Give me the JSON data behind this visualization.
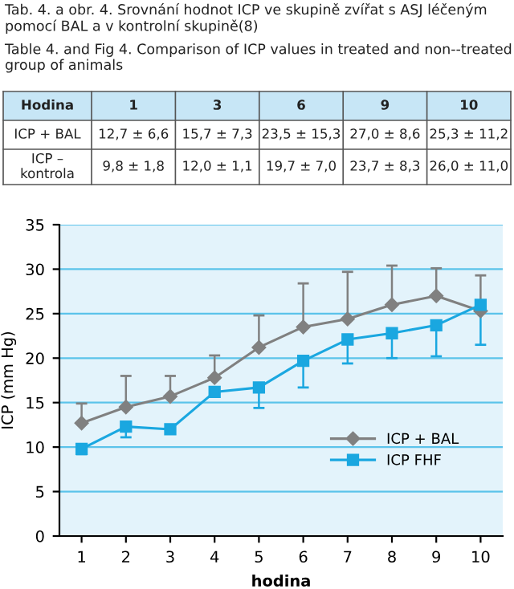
{
  "chart_data": {
    "type": "line",
    "title": "Tab. 4. a obr. 4. Srovnání hodnot ICP ve skupině zvířat s ASJ léčeným pomocí BAL a v kontrolní skupině(8)",
    "subtitle": "Table 4. and Fig 4. Comparison of ICP values in treated and non--treated group of animals",
    "xlabel": "hodina",
    "ylabel": "ICP (mm Hg)",
    "annotations": [
      "Hodina",
      "1",
      "3",
      "6",
      "9",
      "10",
      "ICP + BAL",
      "12,7 ± 6,6",
      "15,7 ± 7,3",
      "23,5 ± 15,3",
      "27,0 ± 8,6",
      "25,3 ± 11,2",
      "ICP –\nkontrola",
      "9,8 ± 1,8",
      "12,0 ± 1,1",
      "19,7 ± 7,0",
      "23,7 ± 8,3",
      "26,0 ± 11,0"
    ],
    "x": [
      1,
      2,
      3,
      4,
      5,
      6,
      7,
      8,
      9,
      10
    ],
    "series": [
      {
        "name": "ICP + BAL",
        "color": "#808080",
        "marker": "diamond",
        "values": [
          12.7,
          14.5,
          15.7,
          17.8,
          21.2,
          23.5,
          24.4,
          26.0,
          27.0,
          25.3
        ],
        "errors": [
          [
            12.7,
            14.9
          ],
          [
            14.5,
            18.0
          ],
          [
            15.7,
            18.0
          ],
          [
            17.8,
            20.3
          ],
          [
            21.2,
            24.8
          ],
          [
            23.5,
            28.4
          ],
          [
            24.4,
            29.7
          ],
          [
            26.0,
            30.4
          ],
          [
            27.0,
            30.1
          ],
          [
            25.3,
            29.3
          ]
        ]
      },
      {
        "name": "ICP FHF",
        "color": "#1aa7e0",
        "marker": "square",
        "values": [
          9.8,
          12.3,
          12.0,
          16.2,
          16.7,
          19.7,
          22.1,
          22.8,
          23.7,
          26.0
        ],
        "errors": [
          [
            9.2,
            9.8
          ],
          [
            11.1,
            12.3
          ],
          [
            11.5,
            12.0
          ],
          null,
          [
            14.4,
            16.7
          ],
          [
            16.7,
            19.7
          ],
          [
            19.4,
            22.1
          ],
          [
            20.0,
            22.8
          ],
          [
            20.2,
            23.7
          ],
          [
            21.5,
            26.0
          ]
        ]
      }
    ],
    "xlim": [
      0.5,
      10.5
    ],
    "xticks": [
      1,
      2,
      3,
      4,
      5,
      6,
      7,
      8,
      9,
      10
    ],
    "ylim": [
      0,
      35
    ],
    "yticks": [
      0,
      5,
      10,
      15,
      20,
      25,
      30,
      35
    ],
    "grid": "y",
    "legend": "bottom right"
  }
}
